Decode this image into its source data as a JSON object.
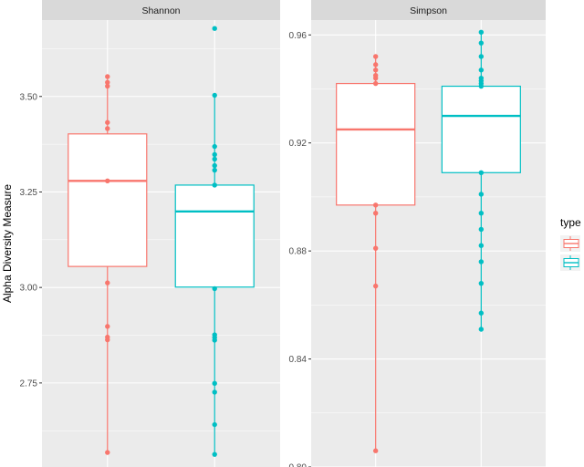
{
  "chart_data": {
    "type": "box",
    "ylabel": "Alpha Diversity Measure",
    "legend": {
      "title": "type",
      "placement": "right",
      "colors": [
        "#F8766D",
        "#00BFC4"
      ]
    },
    "grid": true,
    "panels": [
      {
        "title": "Shannon",
        "ylim": [
          2.53,
          3.7
        ],
        "yticks": [
          2.75,
          3.0,
          3.25,
          3.5
        ],
        "ytick_labels": [
          "2.75",
          "3.00",
          "3.25",
          "3.50"
        ],
        "groups": [
          {
            "color": "#F8766D",
            "box": {
              "q1": 3.055,
              "median": 3.279,
              "q3": 3.402,
              "whisker_low": 2.568,
              "whisker_high": 3.552
            },
            "points": [
              3.552,
              3.537,
              3.527,
              3.432,
              3.416,
              3.279,
              3.012,
              2.898,
              2.87,
              2.863,
              2.568
            ]
          },
          {
            "color": "#00BFC4",
            "box": {
              "q1": 3.001,
              "median": 3.199,
              "q3": 3.268,
              "whisker_low": 2.563,
              "whisker_high": 3.503
            },
            "points": [
              3.678,
              3.503,
              3.369,
              3.348,
              3.336,
              3.319,
              3.307,
              3.268,
              2.997,
              2.876,
              2.869,
              2.862,
              2.749,
              2.726,
              2.641,
              2.563
            ]
          }
        ]
      },
      {
        "title": "Simpson",
        "ylim": [
          0.8,
          0.9655
        ],
        "yticks": [
          0.8,
          0.84,
          0.88,
          0.92,
          0.96
        ],
        "ytick_labels": [
          "0.80",
          "0.84",
          "0.88",
          "0.92",
          "0.96"
        ],
        "groups": [
          {
            "color": "#F8766D",
            "box": {
              "q1": 0.897,
              "median": 0.925,
              "q3": 0.942,
              "whisker_low": 0.806,
              "whisker_high": 0.952
            },
            "points": [
              0.952,
              0.949,
              0.947,
              0.945,
              0.944,
              0.942,
              0.897,
              0.894,
              0.881,
              0.867,
              0.806
            ]
          },
          {
            "color": "#00BFC4",
            "box": {
              "q1": 0.909,
              "median": 0.93,
              "q3": 0.941,
              "whisker_low": 0.851,
              "whisker_high": 0.961
            },
            "points": [
              0.961,
              0.957,
              0.952,
              0.947,
              0.944,
              0.943,
              0.942,
              0.941,
              0.909,
              0.901,
              0.894,
              0.888,
              0.882,
              0.876,
              0.868,
              0.857,
              0.851
            ]
          }
        ]
      }
    ]
  }
}
